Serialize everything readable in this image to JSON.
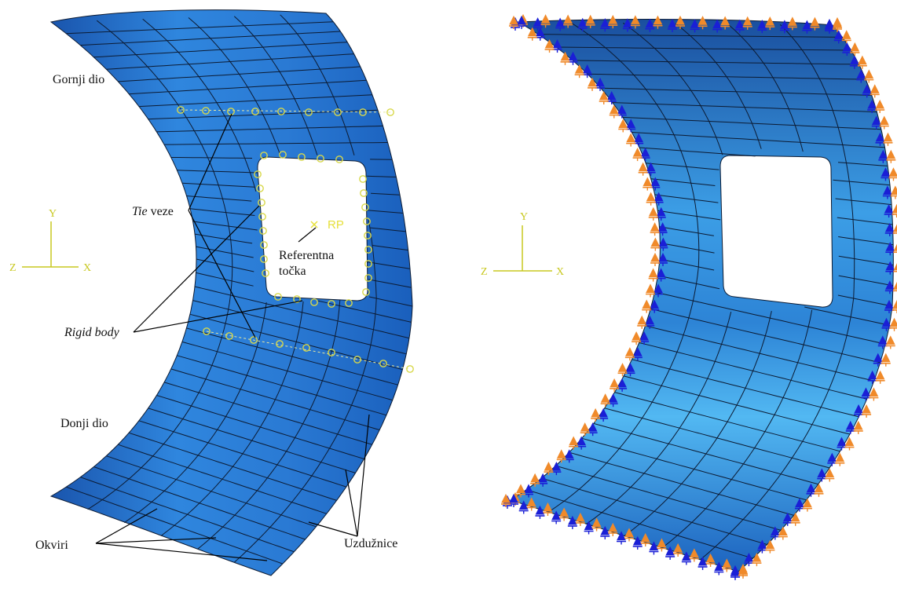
{
  "left_figure": {
    "regions": {
      "upper": "Gornji dio",
      "lower": "Donji dio"
    },
    "callouts": {
      "tie_italic": "Tie",
      "tie_rest": " veze",
      "rigid_body": "Rigid body",
      "reference_line1": "Referentna",
      "reference_line2": "točka",
      "frames": "Okviri",
      "stringers": "Uzdužnice"
    },
    "rp_marker": "RP",
    "axes": {
      "y": "Y",
      "x": "X",
      "z": "Z"
    }
  },
  "right_figure": {
    "axes": {
      "y": "Y",
      "x": "X",
      "z": "Z"
    }
  },
  "colors": {
    "panel": "#1f66c6",
    "panel_light": "#4fb0ee",
    "grid": "#0c1b33",
    "tie_marker": "#d8d84a",
    "bc_blue": "#1a1fd6",
    "bc_orange": "#f08a2a",
    "axis": "#c8c820"
  }
}
